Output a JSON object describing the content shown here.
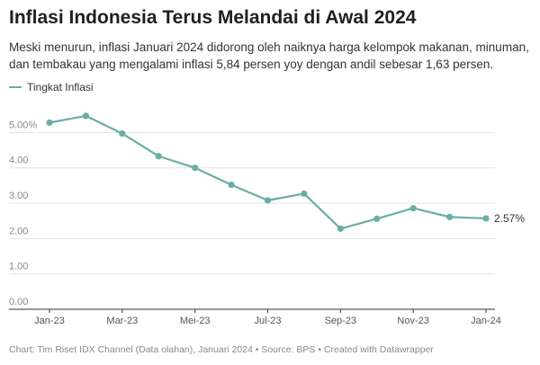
{
  "title": "Inflasi Indonesia Terus Melandai di Awal 2024",
  "subtitle": "Meski menurun, inflasi Januari 2024 didorong oleh naiknya harga kelompok makanan, minuman, dan tembakau yang mengalami inflasi 5,84 persen yoy dengan andil sebesar 1,63 persen.",
  "footer": "Chart: Tim Riset IDX Channel (Data olahan), Januari 2024 • Source: BPS • Created with Datawrapper",
  "colors": {
    "line": "#6aaea5",
    "grid": "#e2e2e2",
    "axis": "#333333",
    "label": "#888888"
  },
  "chart_data": {
    "type": "line",
    "title": "Inflasi Indonesia Terus Melandai di Awal 2024",
    "x": [
      "Jan-23",
      "Feb-23",
      "Mar-23",
      "Apr-23",
      "May-23",
      "Jun-23",
      "Jul-23",
      "Aug-23",
      "Sep-23",
      "Oct-23",
      "Nov-23",
      "Dec-23",
      "Jan-24"
    ],
    "x_tick_labels": [
      "Jan-23",
      "Mar-23",
      "Mei-23",
      "Jul-23",
      "Sep-23",
      "Nov-23",
      "Jan-24"
    ],
    "x_tick_index": [
      0,
      2,
      4,
      6,
      8,
      10,
      12
    ],
    "series": [
      {
        "name": "Tingkat Inflasi",
        "values": [
          5.28,
          5.47,
          4.97,
          4.33,
          4.0,
          3.52,
          3.08,
          3.27,
          2.28,
          2.56,
          2.86,
          2.61,
          2.57
        ]
      }
    ],
    "end_label": "2.57%",
    "y_ticks": [
      0,
      1,
      2,
      3,
      4,
      5
    ],
    "y_tick_labels": [
      "0.00",
      "1.00",
      "2.00",
      "3.00",
      "4.00",
      "5.00%"
    ],
    "ylim": [
      0,
      5.9
    ],
    "grid": true,
    "legend": "top-left"
  }
}
